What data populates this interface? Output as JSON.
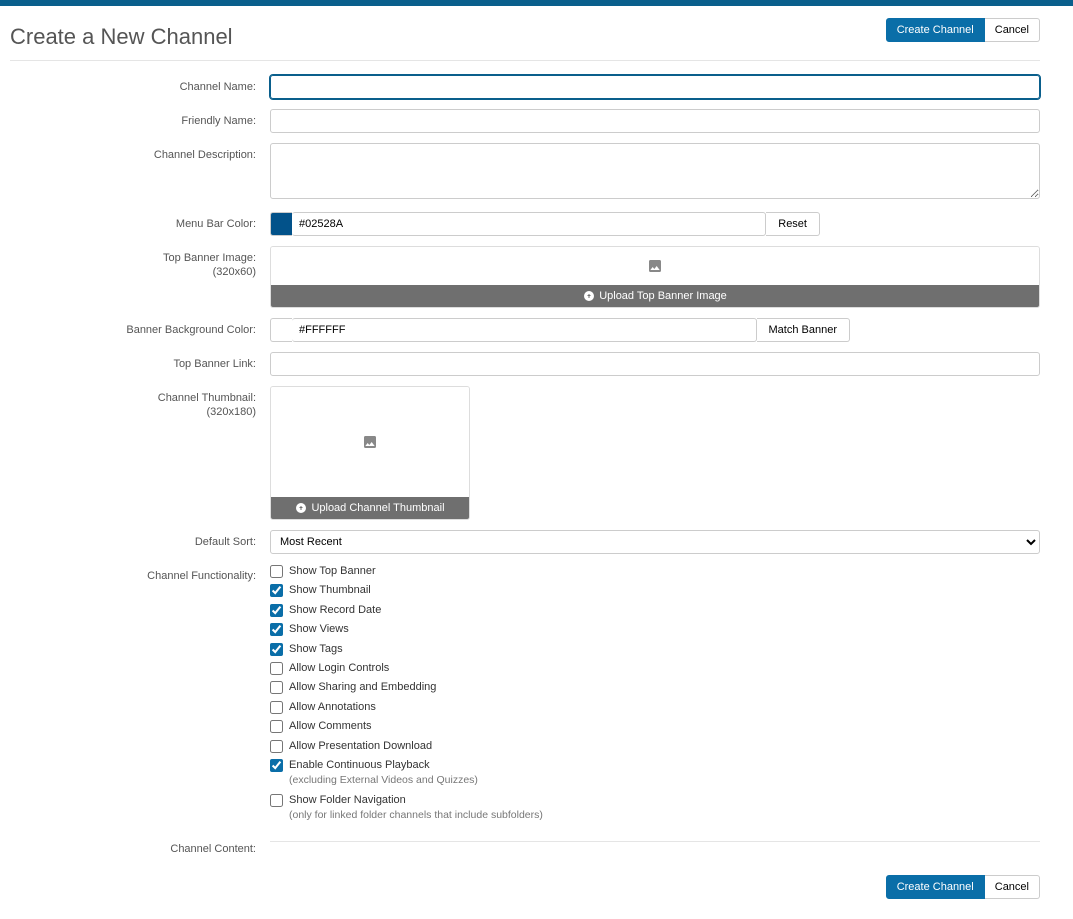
{
  "header": {
    "title": "Create a New Channel",
    "create_label": "Create Channel",
    "cancel_label": "Cancel"
  },
  "colors": {
    "top_bar": "#0a5f8c",
    "primary_button_bg": "#0a6ea8",
    "primary_button_text": "#ffffff",
    "upload_bar_bg": "#6f6f6f"
  },
  "labels": {
    "channel_name": "Channel Name:",
    "friendly_name": "Friendly Name:",
    "channel_description": "Channel Description:",
    "menu_bar_color": "Menu Bar Color:",
    "top_banner_image": "Top Banner Image:",
    "top_banner_image_sub": "(320x60)",
    "banner_bg_color": "Banner Background Color:",
    "top_banner_link": "Top Banner Link:",
    "channel_thumbnail": "Channel Thumbnail:",
    "channel_thumbnail_sub": "(320x180)",
    "default_sort": "Default Sort:",
    "channel_functionality": "Channel Functionality:",
    "channel_content": "Channel Content:"
  },
  "fields": {
    "channel_name": "",
    "friendly_name": "",
    "channel_description": "",
    "menu_bar_color": "#02528A",
    "menu_bar_swatch": "#02528A",
    "reset_label": "Reset",
    "upload_banner_label": "Upload Top Banner Image",
    "banner_bg_color": "#FFFFFF",
    "banner_bg_swatch": "#FFFFFF",
    "match_banner_label": "Match Banner",
    "top_banner_link": "",
    "upload_thumbnail_label": "Upload Channel Thumbnail",
    "default_sort_selected": "Most Recent"
  },
  "functionality": [
    {
      "key": "show_top_banner",
      "label": "Show Top Banner",
      "checked": false
    },
    {
      "key": "show_thumbnail",
      "label": "Show Thumbnail",
      "checked": true
    },
    {
      "key": "show_record_date",
      "label": "Show Record Date",
      "checked": true
    },
    {
      "key": "show_views",
      "label": "Show Views",
      "checked": true
    },
    {
      "key": "show_tags",
      "label": "Show Tags",
      "checked": true
    },
    {
      "key": "allow_login_controls",
      "label": "Allow Login Controls",
      "checked": false
    },
    {
      "key": "allow_sharing_embedding",
      "label": "Allow Sharing and Embedding",
      "checked": false
    },
    {
      "key": "allow_annotations",
      "label": "Allow Annotations",
      "checked": false
    },
    {
      "key": "allow_comments",
      "label": "Allow Comments",
      "checked": false
    },
    {
      "key": "allow_presentation_download",
      "label": "Allow Presentation Download",
      "checked": false
    },
    {
      "key": "enable_continuous_playback",
      "label": "Enable Continuous Playback",
      "sub": "(excluding External Videos and Quizzes)",
      "checked": true
    },
    {
      "key": "show_folder_navigation",
      "label": "Show Folder Navigation",
      "sub": "(only for linked folder channels that include subfolders)",
      "checked": false
    }
  ],
  "footer": {
    "create_label": "Create Channel",
    "cancel_label": "Cancel"
  }
}
